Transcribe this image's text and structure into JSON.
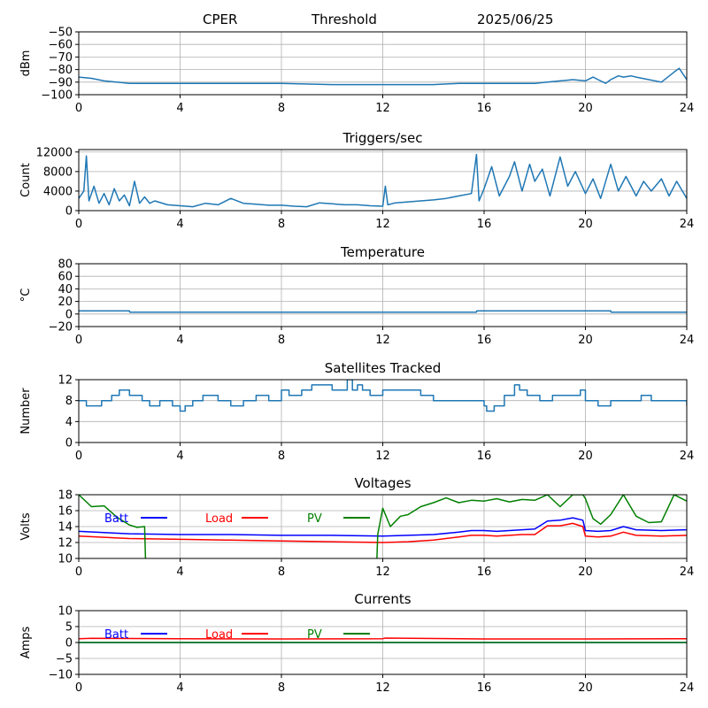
{
  "header": {
    "station": "CPER",
    "mode": "Threshold",
    "date": "2025/06/25"
  },
  "chart_data": [
    {
      "id": "threshold",
      "type": "line",
      "title": "",
      "ylabel": "dBm",
      "xlabel": "",
      "xlim": [
        0,
        24
      ],
      "ylim": [
        -100,
        -50
      ],
      "xticks": [
        0,
        4,
        8,
        12,
        16,
        20,
        24
      ],
      "yticks": [
        -100,
        -90,
        -80,
        -70,
        -60,
        -50
      ],
      "grid": true,
      "series": [
        {
          "color": "#1f77b4",
          "x": [
            0,
            0.5,
            1,
            1.5,
            2,
            3,
            4,
            6,
            8,
            10,
            12,
            14,
            15,
            16,
            17,
            18,
            18.5,
            19,
            19.5,
            20,
            20.3,
            20.5,
            20.8,
            21,
            21.3,
            21.5,
            21.8,
            22,
            22.5,
            23,
            23.5,
            23.7,
            24
          ],
          "y": [
            -86,
            -87,
            -89,
            -90,
            -91,
            -91,
            -91,
            -91,
            -91,
            -92,
            -92,
            -92,
            -91,
            -91,
            -91,
            -91,
            -90,
            -89,
            -88,
            -89,
            -86,
            -88,
            -91,
            -88,
            -85,
            -86,
            -85,
            -86,
            -88,
            -90,
            -82,
            -79,
            -88
          ]
        }
      ]
    },
    {
      "id": "triggers",
      "type": "line",
      "title": "Triggers/sec",
      "ylabel": "Count",
      "xlabel": "",
      "xlim": [
        0,
        24
      ],
      "ylim": [
        0,
        12500
      ],
      "xticks": [
        0,
        4,
        8,
        12,
        16,
        20,
        24
      ],
      "yticks": [
        0,
        4000,
        8000,
        12000
      ],
      "grid": true,
      "series": [
        {
          "color": "#1f77b4",
          "x": [
            0,
            0.2,
            0.3,
            0.4,
            0.6,
            0.8,
            1.0,
            1.2,
            1.4,
            1.6,
            1.8,
            2.0,
            2.2,
            2.4,
            2.6,
            2.8,
            3.0,
            3.5,
            4,
            4.5,
            5,
            5.5,
            6,
            6.5,
            7,
            7.5,
            8,
            8.5,
            9,
            9.5,
            10,
            10.5,
            11,
            11.5,
            12,
            12.1,
            12.2,
            12.5,
            13,
            13.5,
            14,
            14.5,
            15,
            15.5,
            15.7,
            15.8,
            16,
            16.3,
            16.6,
            17,
            17.2,
            17.5,
            17.8,
            18,
            18.3,
            18.6,
            19,
            19.3,
            19.6,
            20,
            20.3,
            20.6,
            21,
            21.3,
            21.6,
            22,
            22.3,
            22.6,
            23,
            23.3,
            23.6,
            24
          ],
          "y": [
            2500,
            4000,
            11200,
            2000,
            5000,
            1500,
            3500,
            1200,
            4500,
            2000,
            3200,
            1000,
            6000,
            1500,
            2800,
            1500,
            2000,
            1200,
            1000,
            800,
            1500,
            1200,
            2500,
            1500,
            1300,
            1100,
            1100,
            900,
            800,
            1600,
            1400,
            1200,
            1200,
            1000,
            900,
            5000,
            1200,
            1600,
            1800,
            2000,
            2200,
            2500,
            3000,
            3500,
            11500,
            2000,
            4500,
            9000,
            3000,
            7000,
            10000,
            4000,
            9500,
            6000,
            8500,
            3000,
            11000,
            5000,
            8000,
            3500,
            6500,
            2500,
            9500,
            4000,
            7000,
            3000,
            6000,
            4000,
            6500,
            3000,
            6000,
            2500
          ]
        }
      ]
    },
    {
      "id": "temperature",
      "type": "line",
      "title": "Temperature",
      "ylabel": "°C",
      "xlabel": "",
      "xlim": [
        0,
        24
      ],
      "ylim": [
        -20,
        80
      ],
      "xticks": [
        0,
        4,
        8,
        12,
        16,
        20,
        24
      ],
      "yticks": [
        -20,
        0,
        20,
        40,
        60,
        80
      ],
      "grid": true,
      "series": [
        {
          "color": "#1f77b4",
          "x": [
            0,
            2,
            2.01,
            15.7,
            15.71,
            21,
            21.01,
            24
          ],
          "y": [
            5,
            5,
            3,
            3,
            5,
            5,
            3,
            3
          ]
        }
      ]
    },
    {
      "id": "satellites",
      "type": "line",
      "title": "Satellites Tracked",
      "ylabel": "Number",
      "xlabel": "",
      "xlim": [
        0,
        24
      ],
      "ylim": [
        0,
        12
      ],
      "xticks": [
        0,
        4,
        8,
        12,
        16,
        20,
        24
      ],
      "yticks": [
        0,
        4,
        8,
        12
      ],
      "grid": true,
      "series": [
        {
          "color": "#1f77b4",
          "step": true,
          "x": [
            0,
            0.3,
            0.9,
            1.3,
            1.6,
            2.0,
            2.5,
            2.8,
            3.2,
            3.7,
            4.0,
            4.2,
            4.5,
            4.9,
            5.5,
            6.0,
            6.5,
            7.0,
            7.5,
            8.0,
            8.3,
            8.8,
            9.2,
            10.0,
            10.6,
            10.8,
            11.0,
            11.2,
            11.5,
            12.0,
            13.5,
            14.0,
            15.0,
            16.0,
            16.1,
            16.4,
            16.8,
            17.2,
            17.4,
            17.7,
            18.2,
            18.7,
            19.2,
            19.8,
            20.0,
            20.5,
            21.0,
            21.7,
            22.2,
            22.6,
            23.0,
            23.5,
            24
          ],
          "y": [
            8,
            7,
            8,
            9,
            10,
            9,
            8,
            7,
            8,
            7,
            6,
            7,
            8,
            9,
            8,
            7,
            8,
            9,
            8,
            10,
            9,
            10,
            11,
            10,
            12,
            10,
            11,
            10,
            9,
            10,
            9,
            8,
            8,
            7,
            6,
            7,
            9,
            11,
            10,
            9,
            8,
            9,
            9,
            10,
            8,
            7,
            8,
            8,
            9,
            8,
            8,
            8,
            7
          ]
        }
      ]
    },
    {
      "id": "voltages",
      "type": "line",
      "title": "Voltages",
      "ylabel": "Volts",
      "xlabel": "",
      "xlim": [
        0,
        24
      ],
      "ylim": [
        10,
        18
      ],
      "xticks": [
        0,
        4,
        8,
        12,
        16,
        20,
        24
      ],
      "yticks": [
        10,
        12,
        14,
        16,
        18
      ],
      "grid": true,
      "legend": [
        {
          "label": "Batt",
          "color": "#0000ff"
        },
        {
          "label": "Load",
          "color": "#ff0000"
        },
        {
          "label": "PV",
          "color": "#008000"
        }
      ],
      "series": [
        {
          "name": "Batt",
          "color": "#0000ff",
          "x": [
            0,
            2,
            4,
            6,
            8,
            10,
            12,
            13,
            14,
            15,
            15.5,
            16,
            16.5,
            17,
            17.5,
            18,
            18.5,
            19,
            19.5,
            19.9,
            20,
            20.5,
            21,
            21.5,
            22,
            23,
            24
          ],
          "y": [
            13.4,
            13.1,
            13.0,
            13.0,
            12.9,
            12.9,
            12.8,
            12.9,
            13.0,
            13.3,
            13.5,
            13.5,
            13.4,
            13.5,
            13.6,
            13.7,
            14.7,
            14.8,
            15.1,
            14.8,
            13.5,
            13.4,
            13.5,
            14.0,
            13.6,
            13.5,
            13.6
          ]
        },
        {
          "name": "Load",
          "color": "#ff0000",
          "x": [
            0,
            2,
            4,
            6,
            8,
            10,
            12,
            13,
            14,
            15,
            15.5,
            16,
            16.5,
            17,
            17.5,
            18,
            18.5,
            19,
            19.5,
            19.9,
            20,
            20.5,
            21,
            21.5,
            22,
            23,
            24
          ],
          "y": [
            12.8,
            12.5,
            12.4,
            12.3,
            12.2,
            12.1,
            12.0,
            12.1,
            12.3,
            12.7,
            12.9,
            12.9,
            12.8,
            12.9,
            13.0,
            13.0,
            14.1,
            14.1,
            14.4,
            14.0,
            12.8,
            12.7,
            12.8,
            13.3,
            12.9,
            12.8,
            12.9
          ]
        },
        {
          "name": "PV",
          "color": "#008000",
          "x": [
            0,
            0.5,
            1,
            1.5,
            2,
            2.3,
            2.6,
            2.65,
            11.75,
            11.8,
            12,
            12.3,
            12.7,
            13,
            13.5,
            14,
            14.5,
            15,
            15.5,
            16,
            16.5,
            17,
            17.5,
            18,
            18.5,
            19,
            19.5,
            19.9,
            20,
            20.3,
            20.6,
            21,
            21.5,
            22,
            22.5,
            23,
            23.5,
            24
          ],
          "y": [
            18,
            16.5,
            16.6,
            15.2,
            14.2,
            13.9,
            14.0,
            8,
            8,
            13,
            16.3,
            14,
            15.3,
            15.5,
            16.5,
            17,
            17.6,
            17,
            17.3,
            17.2,
            17.5,
            17.1,
            17.4,
            17.3,
            18,
            16.5,
            18,
            18,
            17.5,
            15,
            14.3,
            15.5,
            18,
            15.3,
            14.5,
            14.6,
            18,
            17.2
          ]
        }
      ]
    },
    {
      "id": "currents",
      "type": "line",
      "title": "Currents",
      "ylabel": "Amps",
      "xlabel": "",
      "xlim": [
        0,
        24
      ],
      "ylim": [
        -10,
        10
      ],
      "xticks": [
        0,
        4,
        8,
        12,
        16,
        20,
        24
      ],
      "yticks": [
        -10,
        -5,
        0,
        5,
        10
      ],
      "grid": true,
      "legend": [
        {
          "label": "Batt",
          "color": "#0000ff"
        },
        {
          "label": "Load",
          "color": "#ff0000"
        },
        {
          "label": "PV",
          "color": "#008000"
        }
      ],
      "series": [
        {
          "name": "Batt",
          "color": "#0000ff",
          "x": [
            0,
            24
          ],
          "y": [
            0,
            0
          ]
        },
        {
          "name": "Load",
          "color": "#ff0000",
          "x": [
            0,
            0.5,
            4,
            8,
            12,
            12.1,
            16,
            20,
            24
          ],
          "y": [
            1.2,
            1.3,
            1.2,
            1.1,
            1.2,
            1.4,
            1.1,
            1.1,
            1.2
          ]
        },
        {
          "name": "PV",
          "color": "#008000",
          "x": [
            0,
            24
          ],
          "y": [
            0,
            0
          ]
        }
      ]
    }
  ]
}
